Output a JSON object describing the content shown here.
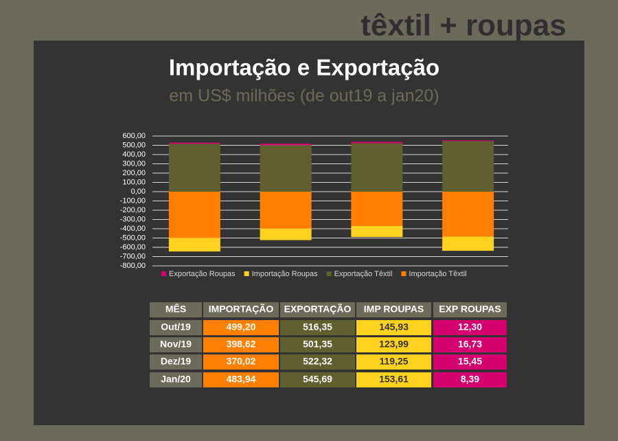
{
  "brand": "têxtil + roupas",
  "chart_data": {
    "type": "bar",
    "stacked": true,
    "title": "Importação e Exportação",
    "subtitle": "em US$ milhões (de out19 a jan20)",
    "categories": [
      null,
      null,
      null,
      null
    ],
    "series": [
      {
        "name": "Exportação Roupas",
        "color": "#d4006f",
        "values": [
          12.3,
          16.73,
          15.45,
          8.39
        ]
      },
      {
        "name": "Importação Roupas",
        "color": "#ffd21f",
        "values": [
          -145.93,
          -123.99,
          -119.25,
          -153.61
        ]
      },
      {
        "name": "Exportação Têxtil",
        "color": "#5f5f2f",
        "values": [
          516.35,
          501.35,
          522.32,
          545.69
        ]
      },
      {
        "name": "Importação Têxtil",
        "color": "#ff7f00",
        "values": [
          -499.2,
          -398.62,
          -370.02,
          -483.94
        ]
      }
    ],
    "ylim": [
      -800,
      600
    ],
    "yticks": [
      {
        "value": 600,
        "label": "600,00"
      },
      {
        "value": 500,
        "label": "500,00"
      },
      {
        "value": 400,
        "label": "400,00"
      },
      {
        "value": 300,
        "label": "300,00"
      },
      {
        "value": 200,
        "label": "200,00"
      },
      {
        "value": 100,
        "label": "100,00"
      },
      {
        "value": 0,
        "label": "0,00"
      },
      {
        "value": -100,
        "label": "-100,00"
      },
      {
        "value": -200,
        "label": "-200,00"
      },
      {
        "value": -300,
        "label": "-300,00"
      },
      {
        "value": -400,
        "label": "-400,00"
      },
      {
        "value": -500,
        "label": "-500,00"
      },
      {
        "value": -600,
        "label": "-600,00"
      },
      {
        "value": -700,
        "label": "-700,00"
      },
      {
        "value": -800,
        "label": "-800,00"
      }
    ],
    "grid": true,
    "legend": "bottom"
  },
  "table": {
    "header": [
      "MÊS",
      "IMPORTAÇÃO",
      "EXPORTAÇÃO",
      "IMP ROUPAS",
      "EXP ROUPAS"
    ],
    "rows": [
      [
        "Out/19",
        "499,20",
        "516,35",
        "145,93",
        "12,30"
      ],
      [
        "Nov/19",
        "398,62",
        "501,35",
        "123,99",
        "16,73"
      ],
      [
        "Dez/19",
        "370,02",
        "522,32",
        "119,25",
        "15,45"
      ],
      [
        "Jan/20",
        "483,94",
        "545,69",
        "153,61",
        "8,39"
      ]
    ]
  }
}
